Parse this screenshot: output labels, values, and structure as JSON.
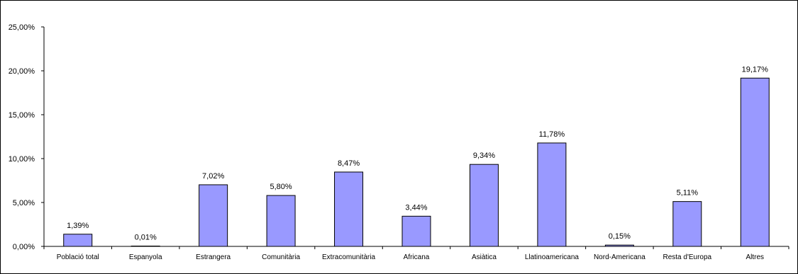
{
  "chart_data": {
    "type": "bar",
    "title": "",
    "xlabel": "",
    "ylabel": "",
    "categories": [
      "Població total",
      "Espanyola",
      "Estrangera",
      "Comunitària",
      "Extracomunitària",
      "Africana",
      "Asiàtica",
      "Llatinoamericana",
      "Nord-Americana",
      "Resta d'Europa",
      "Altres"
    ],
    "values": [
      1.39,
      0.01,
      7.02,
      5.8,
      8.47,
      3.44,
      9.34,
      11.78,
      0.15,
      5.11,
      19.17
    ],
    "data_labels": [
      "1,39%",
      "0,01%",
      "7,02%",
      "5,80%",
      "8,47%",
      "3,44%",
      "9,34%",
      "11,78%",
      "0,15%",
      "5,11%",
      "19,17%"
    ],
    "ylim": [
      0,
      25
    ],
    "yticks": [
      0,
      5,
      10,
      15,
      20,
      25
    ],
    "ytick_labels": [
      "0,00%",
      "5,00%",
      "10,00%",
      "15,00%",
      "20,00%",
      "25,00%"
    ],
    "grid": false,
    "legend": "none",
    "colors": {
      "bar_fill": "#9999ff",
      "bar_stroke": "#000000",
      "axis": "#000000"
    }
  }
}
